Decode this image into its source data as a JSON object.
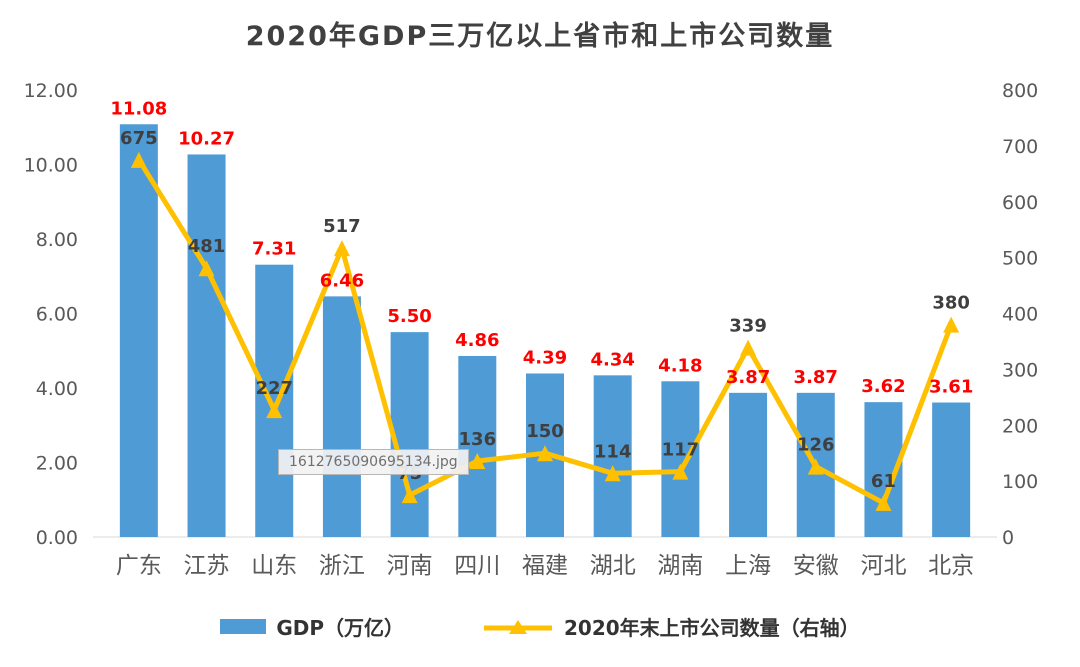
{
  "watermark": {
    "text": "1612765090695134.jpg"
  },
  "chart_data": {
    "type": "combo",
    "title": "2020年GDP三万亿以上省市和上市公司数量",
    "categories": [
      "广东",
      "江苏",
      "山东",
      "浙江",
      "河南",
      "四川",
      "福建",
      "湖北",
      "湖南",
      "上海",
      "安徽",
      "河北",
      "北京"
    ],
    "series": [
      {
        "name": "GDP（万亿）",
        "type": "bar",
        "axis": "left",
        "color": "#4f9bd5",
        "values": [
          11.08,
          10.27,
          7.31,
          6.46,
          5.5,
          4.86,
          4.39,
          4.34,
          4.18,
          3.87,
          3.87,
          3.62,
          3.61
        ]
      },
      {
        "name": "2020年末上市公司数量（右轴）",
        "type": "line",
        "axis": "right",
        "color": "#ffc000",
        "marker": "triangle",
        "values": [
          675,
          481,
          227,
          517,
          75,
          136,
          150,
          114,
          117,
          339,
          126,
          61,
          380
        ]
      }
    ],
    "left_axis": {
      "min": 0,
      "max": 12,
      "step": 2,
      "tick_labels": [
        "0.00",
        "2.00",
        "4.00",
        "6.00",
        "8.00",
        "10.00",
        "12.00"
      ]
    },
    "right_axis": {
      "min": 0,
      "max": 800,
      "step": 100,
      "tick_labels": [
        "0",
        "100",
        "200",
        "300",
        "400",
        "500",
        "600",
        "700",
        "800"
      ]
    },
    "label_colors": {
      "gdp": "#ff0000",
      "companies": "#3f3f3f"
    },
    "grid": false,
    "legend_position": "bottom",
    "xlabel": "",
    "ylabel": ""
  }
}
